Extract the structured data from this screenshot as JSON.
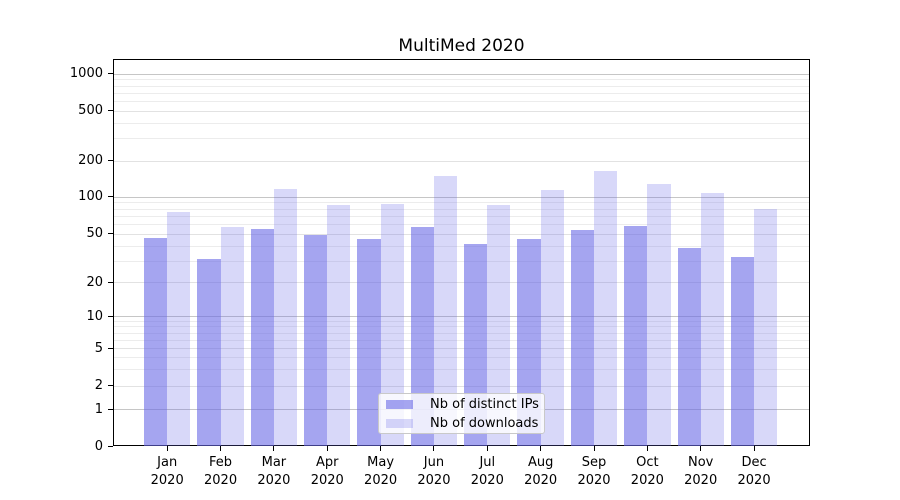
{
  "title": "MultiMed 2020",
  "chart_data": {
    "type": "bar",
    "title": "MultiMed 2020",
    "categories": [
      "Jan",
      "Feb",
      "Mar",
      "Apr",
      "May",
      "Jun",
      "Jul",
      "Aug",
      "Sep",
      "Oct",
      "Nov",
      "Dec"
    ],
    "category_year": "2020",
    "series": [
      {
        "name": "Nb of distinct IPs",
        "color": "rgba(105,105,230,0.6)",
        "values": [
          46,
          31,
          55,
          49,
          45,
          57,
          41,
          45,
          54,
          58,
          38,
          32
        ]
      },
      {
        "name": "Nb of downloads",
        "color": "rgba(105,105,230,0.26)",
        "values": [
          75,
          57,
          115,
          85,
          87,
          150,
          85,
          113,
          165,
          128,
          108,
          79
        ]
      }
    ],
    "yscale": "symlog",
    "yticks": [
      0,
      1,
      2,
      5,
      10,
      20,
      50,
      100,
      200,
      500,
      1000
    ],
    "ylim": [
      0,
      1300
    ],
    "grid": true,
    "legend_position": "lower-center",
    "xlabel": "",
    "ylabel": ""
  },
  "colors": {
    "major_grid": "#c6c6c6",
    "labeled_grid": "#e2e2e2",
    "minor_grid": "#ececec",
    "spine": "#000000",
    "text": "#000000"
  }
}
